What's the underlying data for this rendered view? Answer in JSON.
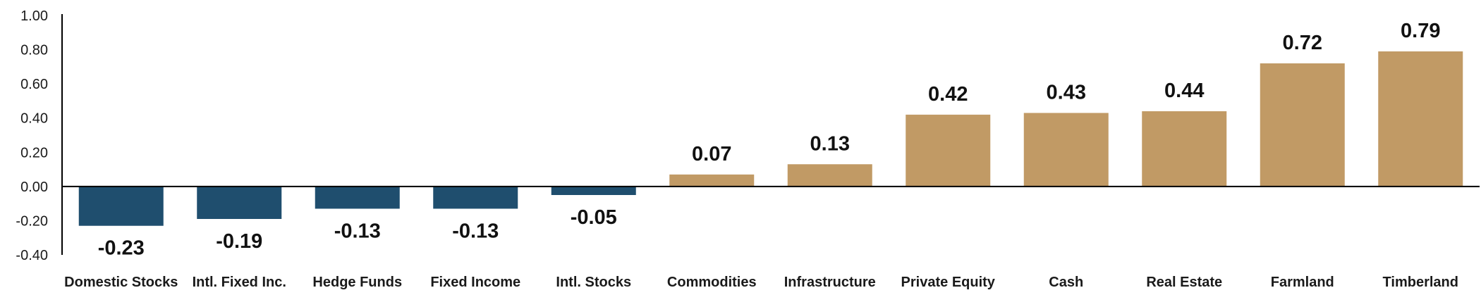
{
  "chart_data": {
    "type": "bar",
    "title": "",
    "xlabel": "",
    "ylabel": "",
    "categories": [
      "Domestic Stocks",
      "Intl. Fixed Inc.",
      "Hedge Funds",
      "Fixed Income",
      "Intl. Stocks",
      "Commodities",
      "Infrastructure",
      "Private Equity",
      "Cash",
      "Real Estate",
      "Farmland",
      "Timberland"
    ],
    "values": [
      -0.23,
      -0.19,
      -0.13,
      -0.13,
      -0.05,
      0.07,
      0.13,
      0.42,
      0.43,
      0.44,
      0.72,
      0.79
    ],
    "data_labels": [
      "-0.23",
      "-0.19",
      "-0.13",
      "-0.13",
      "-0.05",
      "0.07",
      "0.13",
      "0.42",
      "0.43",
      "0.44",
      "0.72",
      "0.79"
    ],
    "ylim": [
      -0.4,
      1.0
    ],
    "yticks": [
      1.0,
      0.8,
      0.6,
      0.4,
      0.2,
      0.0,
      -0.2,
      -0.4
    ],
    "ytick_labels": [
      "1.00",
      "0.80",
      "0.60",
      "0.40",
      "0.20",
      "0.00",
      "-0.20",
      "-0.40"
    ],
    "grid": false,
    "legend": "none",
    "colors": {
      "negative": "#1f4e6e",
      "positive": "#c19a65",
      "axis": "#000000",
      "text": "#1a1a1a"
    }
  }
}
